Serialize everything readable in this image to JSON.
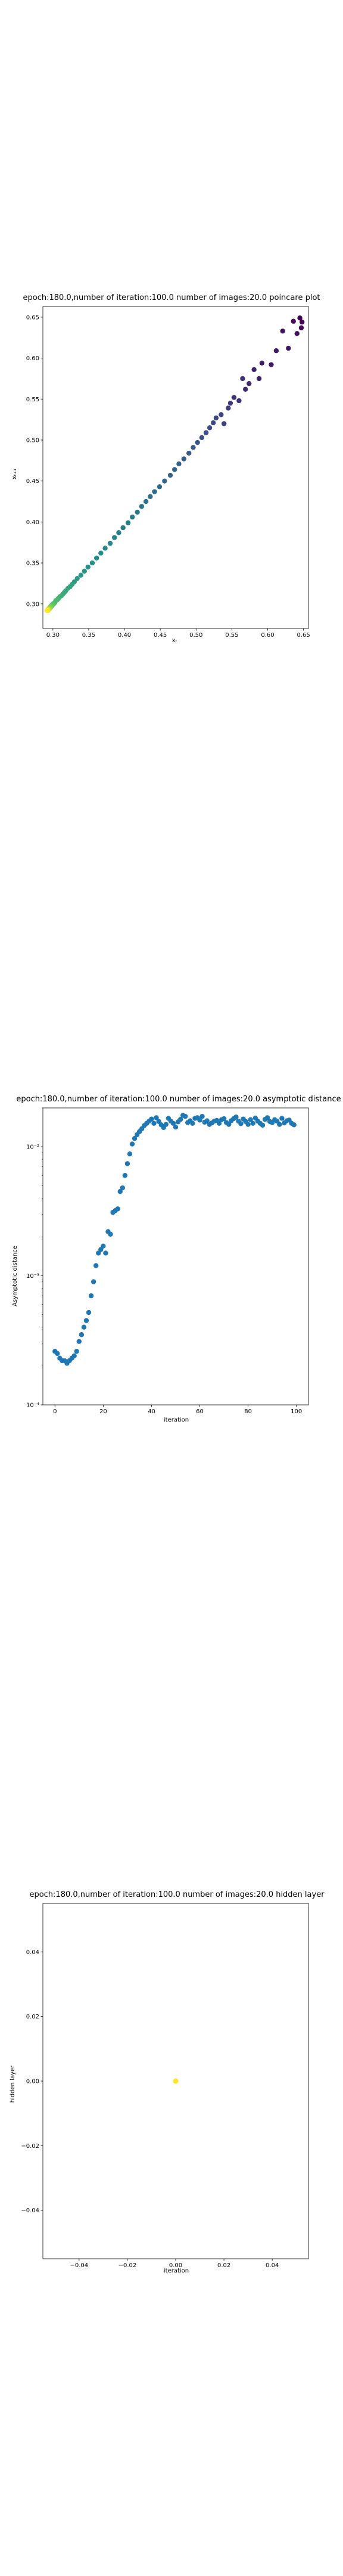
{
  "colors": {
    "point_blue": "#1f77b4",
    "viridis_start": "#440154",
    "viridis_mid": "#21918c",
    "viridis_end": "#fde725",
    "hidden_point": "#fde725",
    "axis": "#000000"
  },
  "chart_data": [
    {
      "type": "scatter",
      "title": "epoch:180.0,number of iteration:100.0 number of images:20.0 poincare plot",
      "xlabel": "xₜ",
      "ylabel": "xₜ₊₁",
      "xlim": [
        0.286,
        0.657
      ],
      "ylim": [
        0.27,
        0.663
      ],
      "xticks": [
        0.3,
        0.35,
        0.4,
        0.45,
        0.5,
        0.55,
        0.6,
        0.65
      ],
      "xtick_labels": [
        "0.30",
        "0.35",
        "0.40",
        "0.45",
        "0.50",
        "0.55",
        "0.60",
        "0.65"
      ],
      "yticks": [
        0.3,
        0.35,
        0.4,
        0.45,
        0.5,
        0.55,
        0.6,
        0.65
      ],
      "ytick_labels": [
        "0.30",
        "0.35",
        "0.40",
        "0.45",
        "0.50",
        "0.55",
        "0.60",
        "0.65"
      ],
      "colormap": "viridis",
      "color_by": "iteration",
      "grid": false,
      "x": [
        0.645,
        0.648,
        0.647,
        0.636,
        0.641,
        0.621,
        0.629,
        0.612,
        0.605,
        0.592,
        0.588,
        0.581,
        0.574,
        0.569,
        0.565,
        0.56,
        0.553,
        0.548,
        0.545,
        0.539,
        0.535,
        0.528,
        0.524,
        0.519,
        0.514,
        0.508,
        0.502,
        0.496,
        0.49,
        0.483,
        0.476,
        0.47,
        0.464,
        0.456,
        0.449,
        0.442,
        0.436,
        0.43,
        0.424,
        0.418,
        0.411,
        0.405,
        0.398,
        0.392,
        0.386,
        0.38,
        0.373,
        0.367,
        0.361,
        0.355,
        0.349,
        0.344,
        0.339,
        0.334,
        0.33,
        0.327,
        0.324,
        0.321,
        0.318,
        0.316,
        0.314,
        0.312,
        0.31,
        0.308,
        0.307,
        0.306,
        0.304,
        0.303,
        0.302,
        0.301,
        0.3,
        0.299,
        0.299,
        0.298,
        0.298,
        0.297,
        0.297,
        0.296,
        0.296,
        0.296,
        0.295,
        0.295,
        0.295,
        0.295,
        0.294,
        0.294,
        0.294,
        0.294,
        0.294,
        0.293,
        0.293,
        0.293,
        0.293,
        0.293,
        0.293,
        0.293,
        0.293,
        0.292,
        0.292
      ],
      "y": [
        0.649,
        0.644,
        0.637,
        0.645,
        0.63,
        0.633,
        0.612,
        0.609,
        0.592,
        0.594,
        0.575,
        0.586,
        0.569,
        0.562,
        0.575,
        0.548,
        0.552,
        0.545,
        0.539,
        0.52,
        0.531,
        0.527,
        0.521,
        0.515,
        0.509,
        0.503,
        0.497,
        0.491,
        0.484,
        0.477,
        0.471,
        0.464,
        0.457,
        0.45,
        0.443,
        0.437,
        0.431,
        0.425,
        0.419,
        0.412,
        0.406,
        0.399,
        0.393,
        0.387,
        0.381,
        0.374,
        0.368,
        0.362,
        0.356,
        0.35,
        0.345,
        0.34,
        0.335,
        0.331,
        0.327,
        0.324,
        0.321,
        0.319,
        0.316,
        0.314,
        0.312,
        0.31,
        0.309,
        0.307,
        0.306,
        0.305,
        0.304,
        0.302,
        0.301,
        0.3,
        0.3,
        0.299,
        0.298,
        0.298,
        0.297,
        0.297,
        0.296,
        0.296,
        0.296,
        0.295,
        0.295,
        0.295,
        0.294,
        0.294,
        0.294,
        0.294,
        0.294,
        0.293,
        0.293,
        0.293,
        0.293,
        0.293,
        0.293,
        0.293,
        0.293,
        0.292,
        0.292,
        0.292,
        0.292
      ]
    },
    {
      "type": "scatter",
      "title": "epoch:180.0,number of iteration:100.0  number of images:20.0 asymptotic distance",
      "xlabel": "iteration",
      "ylabel": "Asymptotic distance",
      "yscale": "log",
      "xlim": [
        -5,
        105
      ],
      "ylim": [
        0.0001,
        0.02
      ],
      "xticks": [
        0,
        20,
        40,
        60,
        80,
        100
      ],
      "xtick_labels": [
        "0",
        "20",
        "40",
        "60",
        "80",
        "100"
      ],
      "yticks": [
        0.0001,
        0.001,
        0.01
      ],
      "ytick_labels": [
        "10⁻⁴",
        "10⁻³",
        "10⁻²"
      ],
      "grid": false,
      "x": [
        0,
        1,
        2,
        3,
        4,
        5,
        6,
        7,
        8,
        9,
        10,
        11,
        12,
        13,
        14,
        15,
        16,
        17,
        18,
        19,
        20,
        21,
        22,
        23,
        24,
        25,
        26,
        27,
        28,
        29,
        30,
        31,
        32,
        33,
        34,
        35,
        36,
        37,
        38,
        39,
        40,
        41,
        42,
        43,
        44,
        45,
        46,
        47,
        48,
        49,
        50,
        51,
        52,
        53,
        54,
        55,
        56,
        57,
        58,
        59,
        60,
        61,
        62,
        63,
        64,
        65,
        66,
        67,
        68,
        69,
        70,
        71,
        72,
        73,
        74,
        75,
        76,
        77,
        78,
        79,
        80,
        81,
        82,
        83,
        84,
        85,
        86,
        87,
        88,
        89,
        90,
        91,
        92,
        93,
        94,
        95,
        96,
        97,
        98,
        99
      ],
      "y": [
        0.00026,
        0.00025,
        0.00023,
        0.00022,
        0.00022,
        0.00021,
        0.00022,
        0.00023,
        0.00024,
        0.00026,
        0.00031,
        0.00035,
        0.0004,
        0.00045,
        0.00052,
        0.0007,
        0.0009,
        0.0012,
        0.0015,
        0.0016,
        0.0017,
        0.0015,
        0.0022,
        0.0021,
        0.0031,
        0.0032,
        0.0033,
        0.0045,
        0.0048,
        0.006,
        0.0074,
        0.0088,
        0.0105,
        0.0116,
        0.0124,
        0.0131,
        0.0138,
        0.0146,
        0.0152,
        0.0158,
        0.0164,
        0.0152,
        0.0168,
        0.0157,
        0.0148,
        0.0141,
        0.0149,
        0.0166,
        0.0158,
        0.0152,
        0.0142,
        0.0156,
        0.0163,
        0.0175,
        0.0172,
        0.0154,
        0.0159,
        0.0152,
        0.0166,
        0.0168,
        0.0161,
        0.0172,
        0.0155,
        0.0159,
        0.0149,
        0.0153,
        0.0158,
        0.016,
        0.0152,
        0.0162,
        0.0165,
        0.0154,
        0.0149,
        0.0159,
        0.0165,
        0.017,
        0.0158,
        0.0151,
        0.0164,
        0.0157,
        0.0149,
        0.0162,
        0.0152,
        0.0167,
        0.0158,
        0.0152,
        0.0147,
        0.0163,
        0.0168,
        0.0157,
        0.0154,
        0.0162,
        0.0158,
        0.0149,
        0.0166,
        0.0153,
        0.0159,
        0.0161,
        0.0152,
        0.0148
      ]
    },
    {
      "type": "scatter",
      "title": "epoch:180.0,number of iteration:100.0  number of images:20.0 hidden layer",
      "xlabel": "iteration",
      "ylabel": "hidden layer",
      "xlim": [
        -0.055,
        0.055
      ],
      "ylim": [
        -0.055,
        0.055
      ],
      "xticks": [
        -0.04,
        -0.02,
        0.0,
        0.02,
        0.04
      ],
      "xtick_labels": [
        "−0.04",
        "−0.02",
        "0.00",
        "0.02",
        "0.04"
      ],
      "yticks": [
        -0.04,
        -0.02,
        0.0,
        0.02,
        0.04
      ],
      "ytick_labels": [
        "−0.04",
        "−0.02",
        "0.00",
        "0.02",
        "0.04"
      ],
      "grid": false,
      "x": [
        0.0
      ],
      "y": [
        0.0
      ]
    }
  ]
}
